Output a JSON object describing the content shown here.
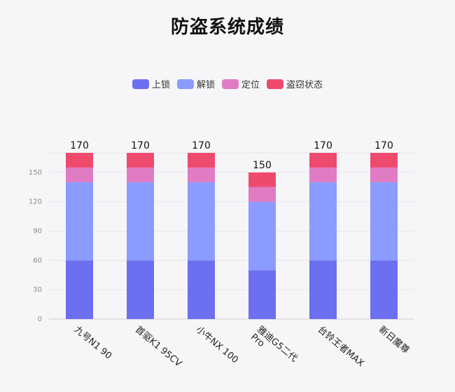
{
  "chart_data": {
    "type": "bar",
    "stacked": true,
    "title": "防盗系统成绩",
    "categories": [
      "九号N1 90",
      "首驱K1 95CV",
      "小牛NX 100",
      "雅迪G5二代 Pro",
      "台铃王者MAX",
      "新日魔尊"
    ],
    "series": [
      {
        "name": "上锁",
        "values": [
          60,
          60,
          60,
          50,
          60,
          60
        ],
        "color": "#6c6ff0"
      },
      {
        "name": "解锁",
        "values": [
          80,
          80,
          80,
          70,
          80,
          80
        ],
        "color": "#8c9bff"
      },
      {
        "name": "定位",
        "values": [
          15,
          15,
          15,
          15,
          15,
          15
        ],
        "color": "#e07bc4"
      },
      {
        "name": "盗窃状态",
        "values": [
          15,
          15,
          15,
          15,
          15,
          15
        ],
        "color": "#ee4a6d"
      }
    ],
    "totals": [
      170,
      170,
      170,
      150,
      170,
      170
    ],
    "ylim": [
      0,
      170
    ],
    "yticks": [
      0,
      30,
      60,
      90,
      120,
      150
    ],
    "grid": true,
    "legend_position": "top-center"
  }
}
